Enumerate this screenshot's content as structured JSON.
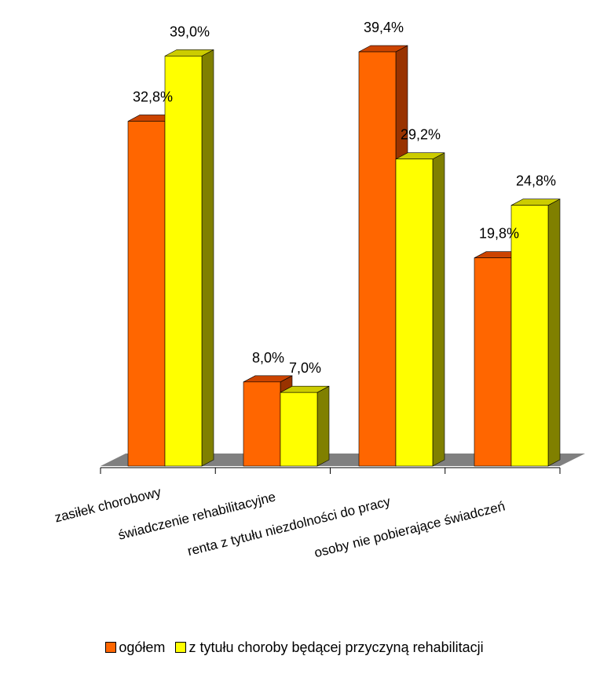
{
  "chart_data": {
    "type": "bar",
    "categories": [
      "zasiłek chorobowy",
      "świadczenie rehabilitacyjne",
      "renta z tytułu niezdolności do pracy",
      "osoby nie pobierające świadczeń"
    ],
    "series": [
      {
        "name": "ogółem",
        "values": [
          32.8,
          8.0,
          39.4,
          19.8
        ],
        "labels": [
          "32,8%",
          "8,0%",
          "39,4%",
          "19,8%"
        ],
        "color": "#FF6600"
      },
      {
        "name": "z tytułu choroby będącej przyczyną rehabilitacji",
        "values": [
          39.0,
          7.0,
          29.2,
          24.8
        ],
        "labels": [
          "39,0%",
          "7,0%",
          "29,2%",
          "24,8%"
        ],
        "color": "#FFFF00"
      }
    ],
    "ylim": [
      0,
      40
    ],
    "legend_position": "bottom",
    "grid": false,
    "style": "3d-column"
  }
}
